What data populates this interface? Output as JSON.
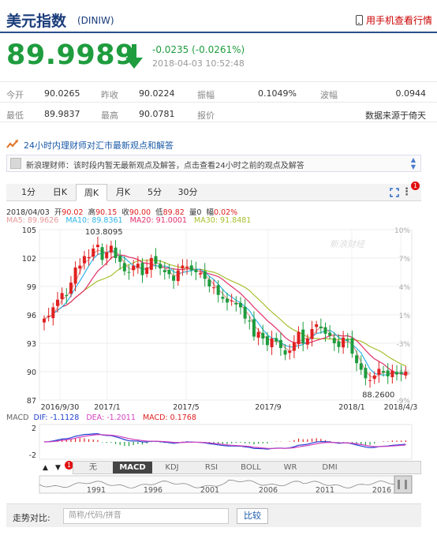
{
  "header": {
    "title": "美元指数",
    "code": "(DINIW)",
    "mobile_link": "用手机查看行情"
  },
  "quote": {
    "price": "89.9989",
    "change": "-0.0235 (-0.0261%)",
    "time": "2018-04-03 10:52:48"
  },
  "stats": {
    "row1": [
      {
        "label": "今开",
        "value": "90.0265"
      },
      {
        "label": "昨收",
        "value": "90.0224"
      },
      {
        "label": "振幅",
        "value": "0.1049%"
      },
      {
        "label": "波幅",
        "value": "0.0944"
      }
    ],
    "row2": [
      {
        "label": "最低",
        "value": "89.9837"
      },
      {
        "label": "最高",
        "value": "90.0781"
      },
      {
        "label": "报价",
        "value": ""
      },
      {
        "label": "",
        "value": "数据来源于倚天"
      }
    ]
  },
  "notice": {
    "headline": "24小时内理财师对汇市最新观点和解答",
    "message": "新浪理财师：该时段内暂无最新观点及解答，点击查看24小时之前的观点及解答"
  },
  "tabs": [
    "1分",
    "日K",
    "周K",
    "月K",
    "5分",
    "30分"
  ],
  "active_tab": "周K",
  "tab_badge": "1",
  "info": {
    "date": "2018/04/03",
    "open_label": "开",
    "open": "90.02",
    "high_label": "高",
    "high": "90.15",
    "close_label": "收",
    "close": "90.00",
    "low_label": "低",
    "low": "89.82",
    "volume_label": "量",
    "volume": "0",
    "amp_label": "幅",
    "amp": "0.02%",
    "ma5": "MA5: 89.9626",
    "ma10": "MA10: 89.8361",
    "ma20": "MA20: 91.0001",
    "ma30": "MA30: 91.8481"
  },
  "colors": {
    "up": "#e02020",
    "down": "#1e9c3e",
    "ma5": "#e89898",
    "ma10": "#30b4e8",
    "ma20": "#e0306a",
    "ma30": "#a8c030",
    "dif": "#2040d0",
    "dea": "#d040c0"
  },
  "watermark": "新浪财经",
  "chart_data": {
    "type": "candlestick",
    "y_ticks": [
      "105",
      "102",
      "99",
      "96",
      "93",
      "90",
      "87"
    ],
    "y_values": [
      105,
      102,
      99,
      96,
      93,
      90,
      87
    ],
    "pct_ticks": [
      "10%",
      "7%",
      "4%",
      "1%",
      "-3%",
      "-6%",
      "-9%"
    ],
    "x_labels": [
      "2016/9/30",
      "2017/1",
      "2017/5",
      "2017/9",
      "2018/1",
      "2018/4/3"
    ],
    "ylim": [
      87,
      105
    ],
    "annotations": {
      "max": "103.8095",
      "min": "88.2600"
    },
    "closes": [
      95.6,
      95.9,
      96.8,
      97.6,
      98.3,
      98.0,
      99.4,
      101.0,
      101.2,
      102.2,
      102.1,
      103.0,
      103.4,
      101.8,
      102.6,
      103.3,
      102.0,
      101.6,
      100.6,
      100.5,
      101.2,
      101.4,
      100.2,
      101.0,
      102.0,
      101.4,
      100.9,
      100.5,
      100.3,
      99.6,
      100.7,
      101.2,
      101.1,
      100.7,
      100.5,
      100.4,
      99.8,
      99.0,
      98.9,
      98.1,
      97.7,
      97.3,
      97.5,
      97.1,
      96.8,
      95.6,
      95.3,
      93.7,
      94.2,
      93.5,
      92.8,
      93.5,
      93.2,
      92.5,
      91.8,
      92.2,
      93.1,
      94.2,
      93.0,
      93.5,
      94.5,
      95.0,
      94.6,
      94.0,
      93.8,
      93.0,
      92.6,
      93.6,
      93.3,
      91.9,
      90.9,
      90.2,
      89.3,
      89.1,
      89.6,
      90.3,
      89.9,
      89.5,
      90.1,
      89.7,
      89.8,
      90.0
    ],
    "macd": {
      "dif": "DIF: -1.1128",
      "dea": "DEA: -1.2011",
      "macd": "MACD: 0.1768",
      "ticks": [
        "2",
        "-2"
      ]
    }
  },
  "indicator_tabs": [
    "无",
    "MACD",
    "KDJ",
    "RSI",
    "BOLL",
    "WR",
    "DMI"
  ],
  "active_indicator": "MACD",
  "indicator_badge": "1",
  "navigator_years": [
    "1991",
    "1996",
    "2001",
    "2006",
    "2011",
    "2016"
  ],
  "compare": {
    "label": "走势对比:",
    "placeholder": "简称/代码/拼音",
    "button": "比较"
  }
}
